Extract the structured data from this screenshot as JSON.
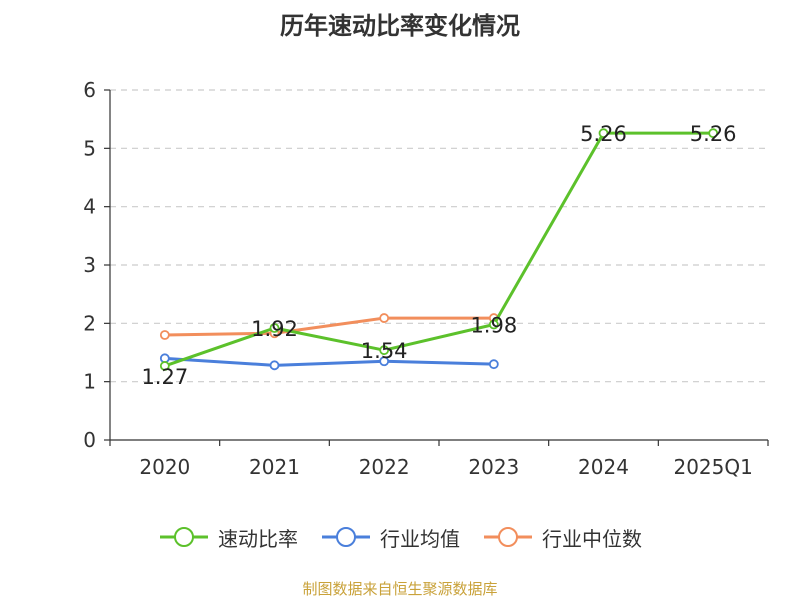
{
  "chart_data": {
    "type": "line",
    "title": "历年速动比率变化情况",
    "categories": [
      "2020",
      "2021",
      "2022",
      "2023",
      "2024",
      "2025Q1"
    ],
    "ylim": [
      0,
      6
    ],
    "yticks": [
      0,
      1,
      2,
      3,
      4,
      5,
      6
    ],
    "grid": true,
    "legend_position": "bottom",
    "series": [
      {
        "name": "速动比率",
        "color": "#5cc12b",
        "values": [
          1.27,
          1.92,
          1.54,
          1.98,
          5.26,
          5.26
        ],
        "labels": [
          "1.27",
          "1.92",
          "1.54",
          "1.98",
          "5.26",
          "5.26"
        ]
      },
      {
        "name": "行业均值",
        "color": "#4a7fdb",
        "values": [
          1.4,
          1.28,
          1.35,
          1.3,
          null,
          null
        ]
      },
      {
        "name": "行业中位数",
        "color": "#f28e5c",
        "values": [
          1.8,
          1.83,
          2.09,
          2.09,
          null,
          null
        ]
      }
    ]
  },
  "footer": {
    "source": "制图数据来自恒生聚源数据库"
  }
}
